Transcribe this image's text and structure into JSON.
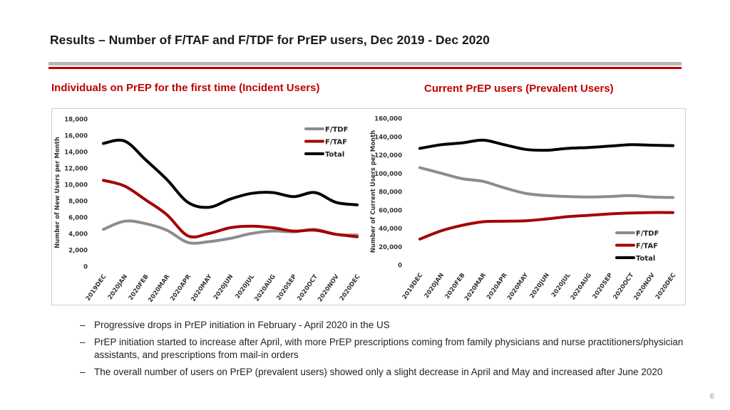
{
  "header": {
    "title": "Results – Number of F/TAF and F/TDF for PrEP users, Dec 2019 - Dec 2020",
    "subtitle_left": "Individuals on PrEP for the first time (Incident Users)",
    "subtitle_right": "Current PrEP users (Prevalent Users)"
  },
  "colors": {
    "ftdf": "#8c8c8c",
    "ftaf": "#a50000",
    "total": "#000000",
    "accent": "#c00000"
  },
  "chart_data": [
    {
      "type": "line",
      "title": "Individuals on PrEP for the first time (Incident Users)",
      "xlabel": "",
      "ylabel": "Number of New Users per Month",
      "ylim": [
        0,
        18000
      ],
      "yticks": [
        0,
        2000,
        4000,
        6000,
        8000,
        10000,
        12000,
        14000,
        16000,
        18000
      ],
      "ytick_labels": [
        "0",
        "2,000",
        "4,000",
        "6,000",
        "8,000",
        "10,000",
        "12,000",
        "14,000",
        "16,000",
        "18,000"
      ],
      "categories": [
        "2019DEC",
        "2020JAN",
        "2020FEB",
        "2020MAR",
        "2020APR",
        "2020MAY",
        "2020JUN",
        "2020JUL",
        "2020AUG",
        "2020SEP",
        "2020OCT",
        "2020NOV",
        "2020DEC"
      ],
      "legend_position": "top-right",
      "series": [
        {
          "name": "F/TDF",
          "values": [
            4500,
            5500,
            5200,
            4400,
            2900,
            3000,
            3400,
            4000,
            4300,
            4200,
            4500,
            3900,
            3800
          ]
        },
        {
          "name": "F/TAF",
          "values": [
            10500,
            9800,
            8100,
            6300,
            3700,
            4000,
            4700,
            4900,
            4700,
            4300,
            4400,
            3900,
            3600
          ]
        },
        {
          "name": "Total",
          "values": [
            15000,
            15300,
            13000,
            10600,
            7800,
            7200,
            8200,
            8900,
            9000,
            8500,
            9000,
            7800,
            7500
          ]
        }
      ]
    },
    {
      "type": "line",
      "title": "Current PrEP users (Prevalent Users)",
      "xlabel": "",
      "ylabel": "Number of Current Users per Month",
      "ylim": [
        0,
        160000
      ],
      "yticks": [
        0,
        20000,
        40000,
        60000,
        80000,
        100000,
        120000,
        140000,
        160000
      ],
      "ytick_labels": [
        "0",
        "20,000",
        "40,000",
        "60,000",
        "80,000",
        "100,000",
        "120,000",
        "140,000",
        "160,000"
      ],
      "categories": [
        "2019DEC",
        "2020JAN",
        "2020FEB",
        "2020MAR",
        "2020APR",
        "2020MAY",
        "2020JUN",
        "2020JUL",
        "2020AUG",
        "2020SEP",
        "2020OCT",
        "2020NOV",
        "2020DEC"
      ],
      "legend_position": "bottom-right",
      "series": [
        {
          "name": "F/TDF",
          "values": [
            106000,
            100000,
            94000,
            91000,
            84000,
            78000,
            75500,
            74500,
            74000,
            74500,
            75500,
            74000,
            73500
          ]
        },
        {
          "name": "F/TAF",
          "values": [
            28000,
            37000,
            43000,
            47000,
            47500,
            48000,
            50000,
            52500,
            54000,
            55500,
            56500,
            57000,
            57000
          ]
        },
        {
          "name": "Total",
          "values": [
            127000,
            131000,
            133000,
            136000,
            131000,
            126000,
            125000,
            127000,
            128000,
            129500,
            131000,
            130500,
            130000
          ]
        }
      ]
    }
  ],
  "bullets": [
    "Progressive drops in PrEP initiation in February - April 2020 in the US",
    "PrEP initiation started to increase after April, with more PrEP prescriptions coming from family physicians and nurse practitioners/physician assistants, and prescriptions from mail-in orders",
    "The overall number of users on PrEP (prevalent users) showed only a slight decrease in April and May and increased after June 2020"
  ],
  "bullet_marker": "–",
  "page_number": "6"
}
